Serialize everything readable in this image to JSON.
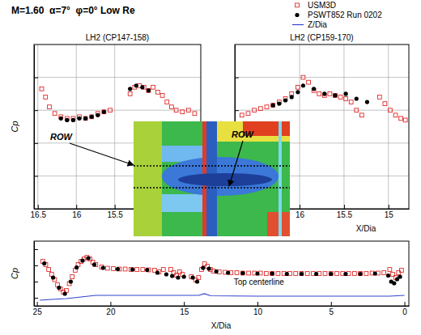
{
  "title": "M=1.60  α=7°  φ=0° Low Re",
  "inset": {
    "labels": [
      "ROW",
      "ROW"
    ]
  },
  "chart_data": [
    {
      "type": "scatter",
      "title": "LH2 (CP147-158)",
      "ylabel": "Cp",
      "xlim": [
        16.55,
        14.38
      ],
      "xticks": [
        16.5,
        16,
        15.5
      ],
      "ylim": [
        -0.6,
        0.4
      ],
      "yticks": [
        -0.4,
        -0.2,
        0,
        0.2
      ],
      "grid": true,
      "tick_labels": "x",
      "series": [
        {
          "color": "#e02828",
          "marker": "square",
          "x": [
            16.45,
            16.4,
            16.35,
            16.28,
            16.2,
            16.12,
            16.04,
            15.96,
            15.88,
            15.8,
            15.72,
            15.64,
            15.56,
            15.3,
            15.24,
            15.18,
            15.12,
            15.06,
            15.0,
            14.94,
            14.88,
            14.82,
            14.76,
            14.7,
            14.62,
            14.54,
            14.46
          ],
          "values": [
            0.13,
            0.08,
            0.02,
            -0.02,
            -0.04,
            -0.05,
            -0.05,
            -0.04,
            -0.05,
            -0.04,
            -0.02,
            -0.01,
            0.0,
            0.1,
            0.14,
            0.15,
            0.14,
            0.12,
            0.14,
            0.11,
            0.09,
            0.05,
            0.02,
            0.0,
            -0.01,
            0.0,
            -0.02
          ]
        },
        {
          "color": "#000000",
          "marker": "circle",
          "x": [
            16.2,
            16.12,
            16.04,
            15.96,
            15.88,
            15.8,
            15.72,
            15.64,
            15.3,
            15.22,
            15.14,
            15.06
          ],
          "values": [
            -0.05,
            -0.06,
            -0.06,
            -0.05,
            -0.05,
            -0.04,
            -0.03,
            -0.01,
            0.13,
            0.15,
            0.14,
            0.12
          ]
        }
      ]
    },
    {
      "type": "scatter",
      "title": "LH2 (CP159-170)",
      "ylabel": "Cp",
      "xlabel": "X/Dia",
      "xlim": [
        16.73,
        14.77
      ],
      "xticks": [
        16,
        15.5,
        15
      ],
      "ylim": [
        -0.6,
        0.4
      ],
      "yticks": [
        -0.4,
        -0.2,
        0,
        0.2
      ],
      "grid": true,
      "tick_labels": "x",
      "series": [
        {
          "color": "#e02828",
          "marker": "square",
          "x": [
            16.65,
            16.58,
            16.51,
            16.44,
            16.37,
            16.3,
            16.23,
            16.16,
            16.09,
            16.02,
            15.96,
            15.9,
            15.84,
            15.78,
            15.72,
            15.66,
            15.6,
            15.54,
            15.48,
            15.42,
            15.36,
            15.3,
            15.1,
            15.04,
            14.98,
            14.92,
            14.86,
            14.81
          ],
          "values": [
            -0.03,
            -0.02,
            0.0,
            0.01,
            0.02,
            0.03,
            0.05,
            0.07,
            0.1,
            0.14,
            0.2,
            0.17,
            0.12,
            0.1,
            0.09,
            0.1,
            0.09,
            0.08,
            0.07,
            0.05,
            0.0,
            -0.03,
            0.08,
            0.04,
            0.0,
            -0.03,
            -0.05,
            -0.06
          ]
        },
        {
          "color": "#000000",
          "marker": "circle",
          "x": [
            16.3,
            16.23,
            16.16,
            16.09,
            16.02,
            15.96,
            15.84,
            15.72,
            15.6,
            15.48,
            15.36,
            15.24
          ],
          "values": [
            0.03,
            0.04,
            0.06,
            0.08,
            0.11,
            0.15,
            0.13,
            0.1,
            0.09,
            0.1,
            0.07,
            0.05
          ]
        }
      ]
    },
    {
      "type": "scatter",
      "ylabel": "Cp",
      "xlabel": "X/Dia",
      "annotations": [
        "Top centerline"
      ],
      "xlim": [
        25.2,
        -0.3
      ],
      "xticks": [
        25,
        20,
        15,
        10,
        5,
        0
      ],
      "ylim": [
        -1.0,
        0.6
      ],
      "yticks": [
        -0.8,
        -0.4,
        0,
        0.4
      ],
      "grid": false,
      "tick_labels": "x",
      "legend": "top-right",
      "series": [
        {
          "name": "USM3D",
          "color": "#e02828",
          "marker": "square",
          "x": [
            24.6,
            24.4,
            24.2,
            24.0,
            23.8,
            23.6,
            23.4,
            23.2,
            23.0,
            22.8,
            22.6,
            22.4,
            22.2,
            22.0,
            21.8,
            21.6,
            21.4,
            21.2,
            21.0,
            20.6,
            20.2,
            19.8,
            19.4,
            19.0,
            18.6,
            18.2,
            17.8,
            17.4,
            17.0,
            16.7,
            16.4,
            15.9,
            15.7,
            15.5,
            15.3,
            15.1,
            14.5,
            14.2,
            14.0,
            13.8,
            13.6,
            13.4,
            13.2,
            13.0,
            12.6,
            12.2,
            11.8,
            11.4,
            11.0,
            10.6,
            10.2,
            9.8,
            9.4,
            9.0,
            8.6,
            8.2,
            7.8,
            7.4,
            7.0,
            6.6,
            6.2,
            5.8,
            5.4,
            5.0,
            4.6,
            4.2,
            3.8,
            3.4,
            3.0,
            2.6,
            2.2,
            1.8,
            1.4,
            1.0,
            0.8,
            0.6,
            0.4,
            0.2
          ],
          "values": [
            0.1,
            0.02,
            -0.1,
            -0.22,
            -0.35,
            -0.48,
            -0.58,
            -0.66,
            -0.62,
            -0.45,
            -0.28,
            -0.12,
            0.02,
            0.1,
            0.16,
            0.2,
            0.16,
            0.08,
            0.02,
            -0.04,
            -0.07,
            -0.08,
            -0.09,
            -0.09,
            -0.1,
            -0.1,
            -0.1,
            -0.11,
            -0.12,
            -0.16,
            -0.1,
            -0.1,
            -0.18,
            -0.24,
            -0.16,
            -0.22,
            -0.28,
            -0.36,
            -0.3,
            -0.1,
            0.04,
            -0.02,
            -0.1,
            -0.14,
            -0.16,
            -0.17,
            -0.18,
            -0.18,
            -0.19,
            -0.19,
            -0.19,
            -0.19,
            -0.2,
            -0.2,
            -0.2,
            -0.2,
            -0.2,
            -0.2,
            -0.2,
            -0.2,
            -0.2,
            -0.2,
            -0.2,
            -0.2,
            -0.2,
            -0.2,
            -0.2,
            -0.2,
            -0.2,
            -0.2,
            -0.19,
            -0.19,
            -0.18,
            -0.1,
            -0.22,
            -0.3,
            -0.18,
            -0.12
          ]
        },
        {
          "name": "PSWT852 Run 0202",
          "color": "#000000",
          "marker": "circle",
          "x": [
            24.5,
            23.9,
            23.5,
            23.1,
            22.7,
            22.3,
            21.9,
            21.5,
            21.1,
            20.5,
            19.5,
            18.5,
            17.5,
            16.8,
            16.2,
            15.8,
            15.4,
            15.0,
            14.4,
            14.1,
            13.7,
            13.3,
            12.8,
            12.0,
            11.0,
            10.0,
            9.0,
            8.0,
            7.0,
            6.0,
            5.0,
            4.0,
            3.0,
            2.0,
            1.1,
            0.9,
            0.7,
            0.5,
            0.3
          ],
          "values": [
            0.05,
            -0.3,
            -0.55,
            -0.7,
            -0.4,
            -0.05,
            0.12,
            0.18,
            0.02,
            -0.06,
            -0.09,
            -0.1,
            -0.11,
            -0.18,
            -0.22,
            -0.26,
            -0.3,
            -0.28,
            -0.3,
            -0.4,
            -0.06,
            -0.08,
            -0.15,
            -0.18,
            -0.19,
            -0.2,
            -0.2,
            -0.21,
            -0.21,
            -0.21,
            -0.21,
            -0.21,
            -0.21,
            -0.2,
            -0.25,
            -0.4,
            -0.44,
            -0.34,
            -0.28
          ]
        },
        {
          "name": "Z/Dia",
          "type": "line",
          "color": "#3344cc",
          "line_style": "solid",
          "x": [
            24.8,
            24.0,
            23.0,
            22.0,
            21.0,
            20.0,
            15.0,
            14.0,
            13.6,
            13.2,
            10.0,
            5.0,
            1.0,
            0.0
          ],
          "values": [
            -0.86,
            -0.84,
            -0.82,
            -0.78,
            -0.74,
            -0.74,
            -0.74,
            -0.74,
            -0.7,
            -0.75,
            -0.76,
            -0.76,
            -0.76,
            -0.74
          ]
        }
      ]
    }
  ]
}
